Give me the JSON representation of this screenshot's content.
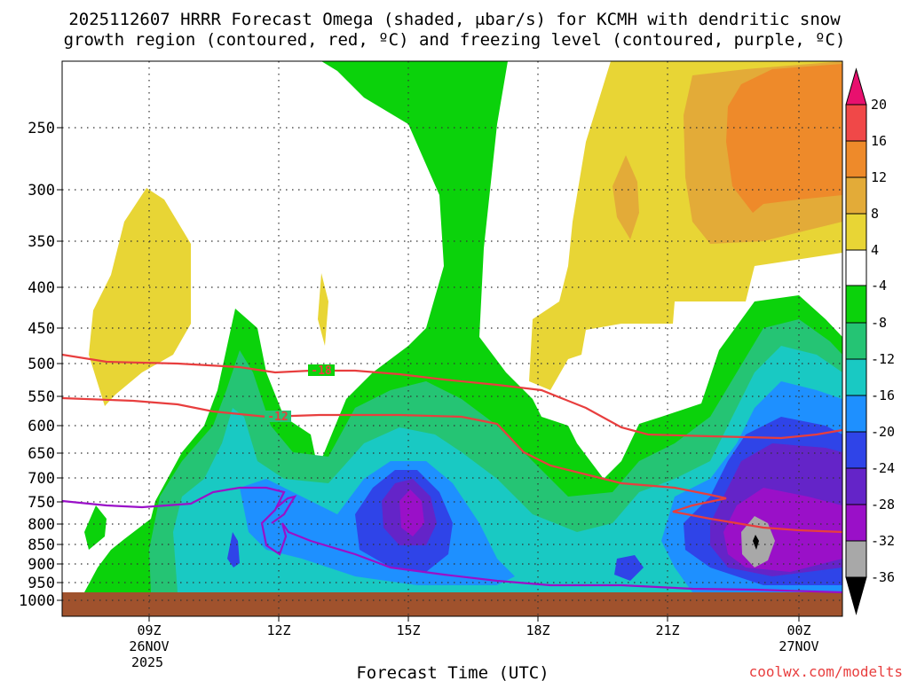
{
  "chart_data": {
    "type": "heatmap",
    "title_line1": "2025112607 HRRR Forecast Omega (shaded, μbar/s) for KCMH with dendritic snow",
    "title_line2": "growth region (contoured, red, ºC) and freezing level (contoured, purple, ºC)",
    "xlabel": "Forecast Time (UTC)",
    "ylabel": "",
    "x_ticks": [
      {
        "label": "09Z",
        "sub1": "26NOV",
        "sub2": "2025"
      },
      {
        "label": "12Z",
        "sub1": "",
        "sub2": ""
      },
      {
        "label": "15Z",
        "sub1": "",
        "sub2": ""
      },
      {
        "label": "18Z",
        "sub1": "",
        "sub2": ""
      },
      {
        "label": "21Z",
        "sub1": "",
        "sub2": ""
      },
      {
        "label": "00Z",
        "sub1": "27NOV",
        "sub2": ""
      }
    ],
    "y_ticks": [
      "250",
      "300",
      "350",
      "400",
      "450",
      "500",
      "550",
      "600",
      "650",
      "700",
      "750",
      "800",
      "850",
      "900",
      "950",
      "1000"
    ],
    "colorbar_labels": [
      "20",
      "16",
      "12",
      "8",
      "4",
      "-4",
      "-8",
      "-12",
      "-16",
      "-20",
      "-24",
      "-28",
      "-32",
      "-36"
    ],
    "contour_labels": [
      "-18",
      "-12"
    ],
    "credit": "coolwx.com/modelts",
    "colors": {
      "pos_20": "#e8106e",
      "pos_16": "#f04848",
      "pos_12": "#ee8a2a",
      "pos_8": "#e3ab38",
      "pos_4": "#e8d535",
      "neutral": "#ffffff",
      "neg_4": "#0bd20b",
      "neg_8": "#25c474",
      "neg_12": "#19c9c3",
      "neg_16": "#1e90ff",
      "neg_20": "#2f44e8",
      "neg_24": "#6424c8",
      "neg_28": "#9a10c8",
      "neg_32": "#a8a8a8",
      "neg_36": "#000000",
      "ground": "#a0522d",
      "dgz_contour": "#e83e3e",
      "freezing_contour": "#9a10c8"
    }
  }
}
